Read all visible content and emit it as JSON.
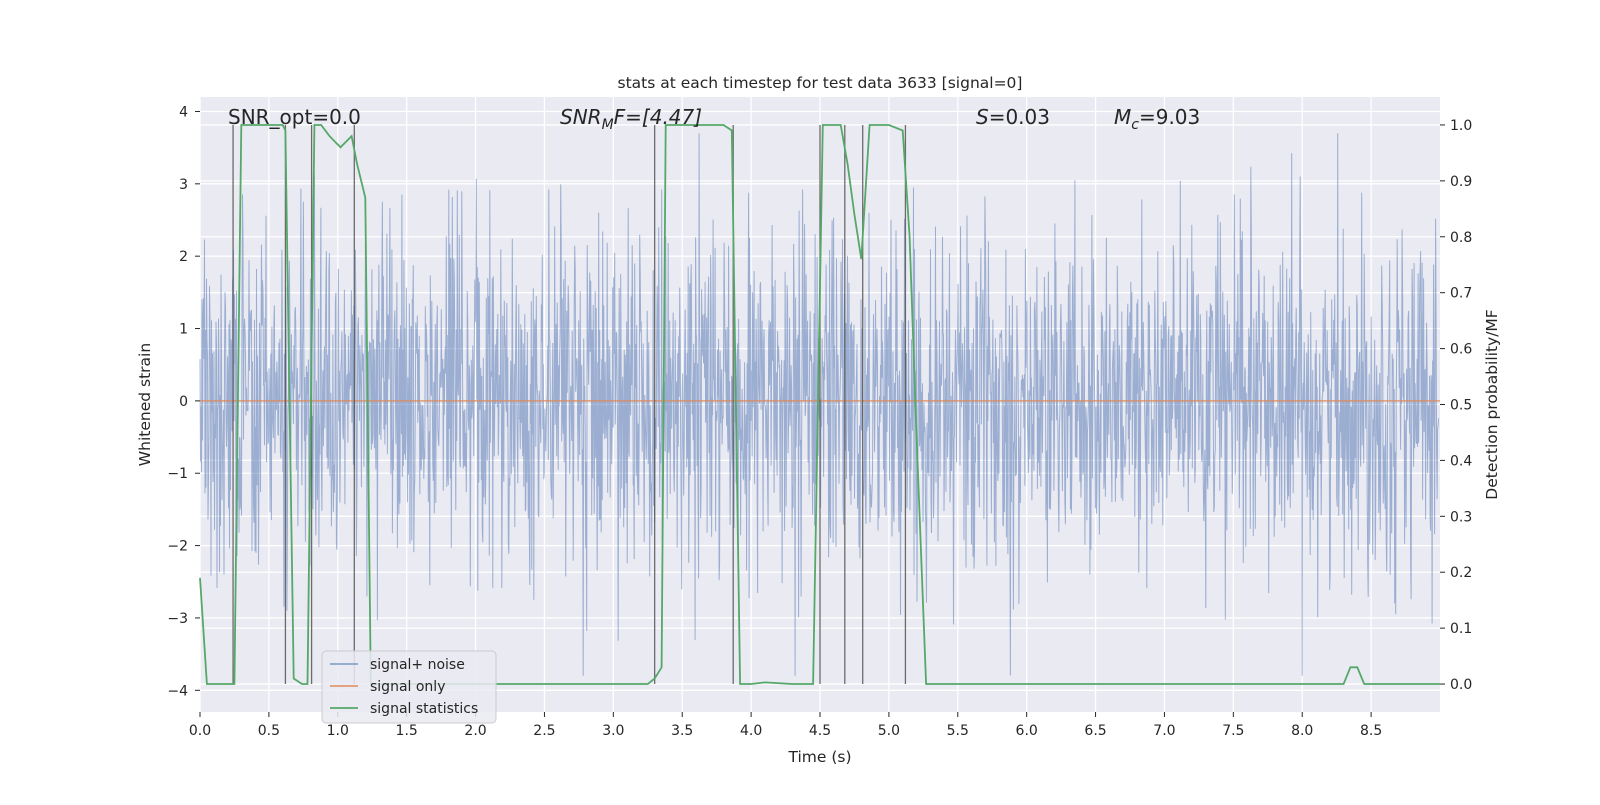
{
  "chart_data": {
    "type": "line",
    "title": "stats at each timestep for test data 3633 [signal=0]",
    "xlabel": "Time (s)",
    "ylabel_left": "Whitened strain",
    "ylabel_right": "Detection probability/MF",
    "xlim": [
      0.0,
      9.0
    ],
    "ylim_left": [
      -4.3,
      4.2
    ],
    "ylim_right": [
      -0.05,
      1.05
    ],
    "x_ticks": [
      0.0,
      0.5,
      1.0,
      1.5,
      2.0,
      2.5,
      3.0,
      3.5,
      4.0,
      4.5,
      5.0,
      5.5,
      6.0,
      6.5,
      7.0,
      7.5,
      8.0,
      8.5
    ],
    "x_tick_labels": [
      "0.0",
      "0.5",
      "1.0",
      "1.5",
      "2.0",
      "2.5",
      "3.0",
      "3.5",
      "4.0",
      "4.5",
      "5.0",
      "5.5",
      "6.0",
      "6.5",
      "7.0",
      "7.5",
      "8.0",
      "8.5"
    ],
    "y_left_ticks": [
      -4,
      -3,
      -2,
      -1,
      0,
      1,
      2,
      3,
      4
    ],
    "y_left_tick_labels": [
      "−4",
      "−3",
      "−2",
      "−1",
      "0",
      "1",
      "2",
      "3",
      "4"
    ],
    "y_right_ticks": [
      0.0,
      0.1,
      0.2,
      0.3,
      0.4,
      0.5,
      0.6,
      0.7,
      0.8,
      0.9,
      1.0
    ],
    "y_right_tick_labels": [
      "0.0",
      "0.1",
      "0.2",
      "0.3",
      "0.4",
      "0.5",
      "0.6",
      "0.7",
      "0.8",
      "0.9",
      "1.0"
    ],
    "annotations": {
      "snr_opt": "SNR_opt=0.0",
      "snr_mf_symbol": "SNR",
      "snr_mf_sub": "M",
      "snr_mf_rest": "F=[4.47]",
      "s_symbol": "S",
      "s_value": "=0.03",
      "mc_symbol": "M",
      "mc_sub": "c",
      "mc_value": "=9.03"
    },
    "legend": {
      "position": "lower-left",
      "entries": [
        "signal+ noise",
        "signal only",
        "signal statistics"
      ]
    },
    "colors": {
      "noise": "#4c72b0",
      "signal_only": "#dd8452",
      "statistics": "#55a868",
      "vlines": "#555555",
      "background": "#eaeaf2",
      "grid": "#ffffff"
    },
    "series": [
      {
        "name": "signal+ noise",
        "kind": "noise-envelope",
        "duration_s": 8.99,
        "std": 1.0,
        "peak_max": 3.7,
        "peak_min": -3.8
      },
      {
        "name": "signal only",
        "x": [
          0.0,
          9.0
        ],
        "y": [
          0.0,
          0.0
        ]
      },
      {
        "name": "signal statistics",
        "x": [
          0.0,
          0.05,
          0.25,
          0.3,
          0.6,
          0.62,
          0.68,
          0.74,
          0.78,
          0.83,
          0.88,
          0.94,
          0.98,
          1.02,
          1.06,
          1.1,
          1.14,
          1.2,
          1.24,
          1.3,
          3.25,
          3.3,
          3.35,
          3.38,
          3.45,
          3.8,
          3.86,
          3.92,
          4.0,
          4.1,
          4.3,
          4.45,
          4.52,
          4.58,
          4.65,
          4.7,
          4.75,
          4.8,
          4.86,
          4.92,
          5.0,
          5.1,
          5.15,
          5.2,
          5.27,
          5.35,
          8.3,
          8.35,
          8.4,
          8.45,
          9.0
        ],
        "y": [
          0.19,
          0.0,
          0.0,
          1.0,
          1.0,
          0.99,
          0.01,
          0.0,
          0.0,
          1.0,
          1.0,
          0.98,
          0.97,
          0.96,
          0.97,
          0.98,
          0.93,
          0.87,
          0.0,
          0.0,
          0.0,
          0.01,
          0.03,
          1.0,
          1.0,
          1.0,
          0.99,
          0.0,
          0.0,
          0.003,
          0.0,
          0.0,
          1.0,
          1.0,
          1.0,
          0.93,
          0.84,
          0.76,
          1.0,
          1.0,
          1.0,
          0.99,
          0.8,
          0.45,
          0.0,
          0.0,
          0.0,
          0.03,
          0.03,
          0.0,
          0.0
        ]
      }
    ],
    "vertical_lines_x": [
      0.24,
      0.62,
      0.81,
      1.12,
      3.3,
      3.87,
      4.5,
      4.68,
      4.81,
      5.12
    ]
  }
}
